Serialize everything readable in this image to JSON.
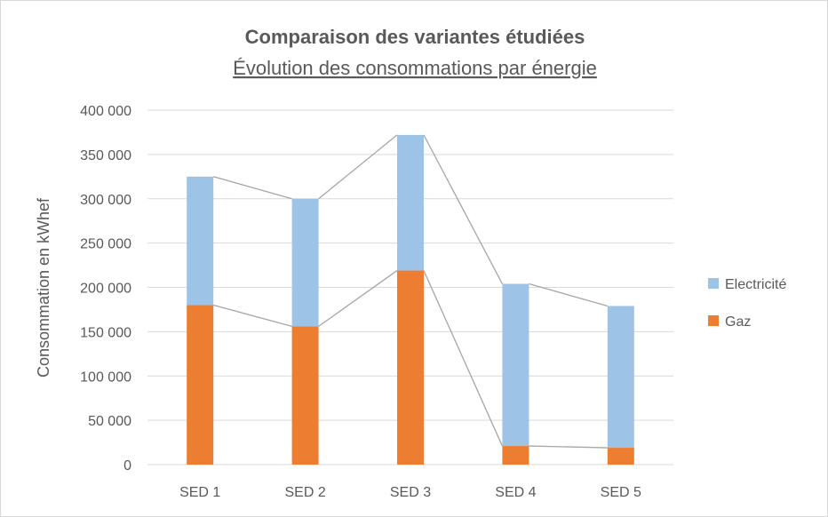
{
  "chart_data": {
    "type": "bar",
    "stacked": true,
    "title": "Comparaison des variantes étudiées",
    "subtitle": "Évolution des consommations par énergie",
    "xlabel": "",
    "ylabel": "Consommation en kWhef",
    "ylim": [
      0,
      400000
    ],
    "yticks": [
      0,
      50000,
      100000,
      150000,
      200000,
      250000,
      300000,
      350000,
      400000
    ],
    "ytick_labels": [
      "0",
      "50 000",
      "100 000",
      "150 000",
      "200 000",
      "250 000",
      "300 000",
      "350 000",
      "400 000"
    ],
    "categories": [
      "SED 1",
      "SED 2",
      "SED 3",
      "SED 4",
      "SED 5"
    ],
    "series": [
      {
        "name": "Gaz",
        "values": [
          180000,
          156000,
          219000,
          21000,
          19000
        ],
        "color": "#ED7D31"
      },
      {
        "name": "Electricité",
        "values": [
          145000,
          144000,
          153000,
          183000,
          160000
        ],
        "color": "#9DC3E6"
      }
    ],
    "series_lines": true,
    "grid": true,
    "legend": "right",
    "legend_order": [
      "Electricité",
      "Gaz"
    ]
  }
}
